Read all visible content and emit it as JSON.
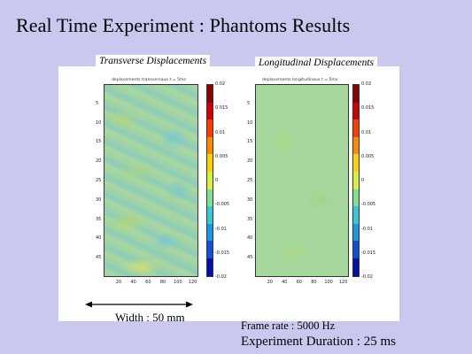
{
  "slide": {
    "title": "Real Time Experiment : Phantoms Results",
    "width_label": "Width : 50 mm",
    "frame_rate": "Frame rate : 5000 Hz",
    "duration": "Experiment Duration : 25 ms"
  },
  "panels": {
    "transverse": {
      "label": "Transverse Displacements",
      "plot_title": "deplacements transversaux t = 5ms",
      "y_ticks": [
        "5",
        "10",
        "15",
        "20",
        "25",
        "30",
        "35",
        "40",
        "45"
      ],
      "x_ticks": [
        "20",
        "40",
        "60",
        "80",
        "100",
        "120"
      ],
      "colorbar_ticks": [
        "0.02",
        "0.015",
        "0.01",
        "0.005",
        "0",
        "-0.005",
        "-0.01",
        "-0.015",
        "-0.02"
      ]
    },
    "longitudinal": {
      "label": "Longitudinal Displacements",
      "plot_title": "deplacements longitudinaux t = 5ms",
      "y_ticks": [
        "5",
        "10",
        "15",
        "20",
        "25",
        "30",
        "35",
        "40",
        "45"
      ],
      "x_ticks": [
        "20",
        "40",
        "60",
        "80",
        "100",
        "120"
      ],
      "colorbar_ticks": [
        "0.02",
        "0.015",
        "0.01",
        "0.005",
        "0",
        "-0.005",
        "-0.01",
        "-0.015",
        "-0.02"
      ]
    }
  },
  "colors": {
    "background": "#c9c9f0",
    "colormap": [
      "#8b0000",
      "#d40000",
      "#ff3a00",
      "#ff8a00",
      "#ffd000",
      "#d8f03a",
      "#7fe090",
      "#35c8d8",
      "#1898e8",
      "#1050d8",
      "#0010b0"
    ]
  }
}
